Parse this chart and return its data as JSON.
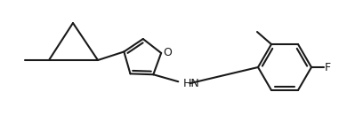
{
  "bg_color": "#ffffff",
  "line_color": "#1a1a1a",
  "line_width": 1.5,
  "text_color": "#1a1a1a",
  "font_size": 9,
  "label_O": "O",
  "label_NH": "HN",
  "label_F": "F",
  "figsize": [
    3.99,
    1.56
  ],
  "dpi": 100
}
